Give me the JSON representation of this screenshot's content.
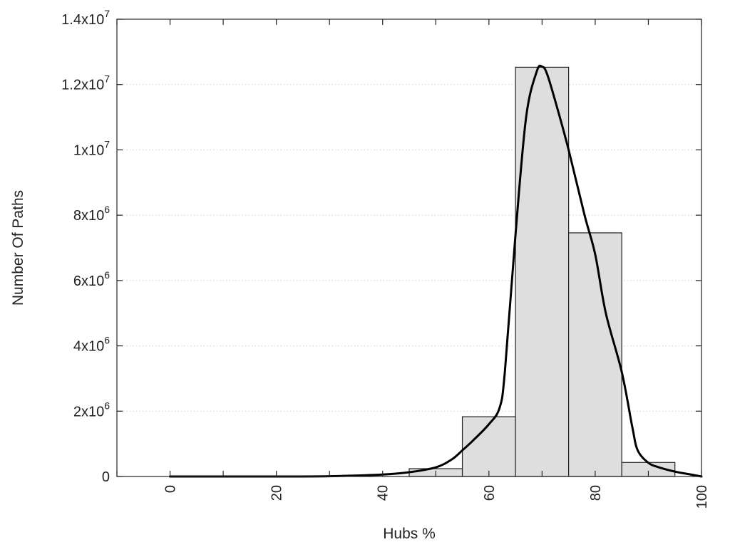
{
  "chart_data": {
    "type": "bar",
    "xlabel": "Hubs %",
    "ylabel": "Number Of Paths",
    "xlim": [
      -10,
      100
    ],
    "ylim": [
      0,
      14000000
    ],
    "grid": true,
    "legend": "none",
    "x_ticks": [
      {
        "value": 0,
        "label": "0"
      },
      {
        "value": 20,
        "label": "20"
      },
      {
        "value": 40,
        "label": "40"
      },
      {
        "value": 60,
        "label": "60"
      },
      {
        "value": 80,
        "label": "80"
      },
      {
        "value": 100,
        "label": "100"
      }
    ],
    "y_ticks": [
      {
        "value": 0,
        "base": "0",
        "exp": ""
      },
      {
        "value": 2000000,
        "base": "2x10",
        "exp": "6"
      },
      {
        "value": 4000000,
        "base": "4x10",
        "exp": "6"
      },
      {
        "value": 6000000,
        "base": "6x10",
        "exp": "6"
      },
      {
        "value": 8000000,
        "base": "8x10",
        "exp": "6"
      },
      {
        "value": 10000000,
        "base": "1x10",
        "exp": "7"
      },
      {
        "value": 12000000,
        "base": "1.2x10",
        "exp": "7"
      },
      {
        "value": 14000000,
        "base": "1.4x10",
        "exp": "7"
      }
    ],
    "bars": [
      {
        "x0": 45,
        "x1": 55,
        "value": 240000
      },
      {
        "x0": 55,
        "x1": 65,
        "value": 1830000
      },
      {
        "x0": 65,
        "x1": 75,
        "value": 12530000
      },
      {
        "x0": 75,
        "x1": 85,
        "value": 7460000
      },
      {
        "x0": 85,
        "x1": 95,
        "value": 430000
      }
    ],
    "curve": [
      [
        0,
        0
      ],
      [
        10,
        0
      ],
      [
        20,
        0
      ],
      [
        30,
        8000
      ],
      [
        40,
        60000
      ],
      [
        45,
        130000
      ],
      [
        50,
        280000
      ],
      [
        53,
        520000
      ],
      [
        55,
        800000
      ],
      [
        57,
        1100000
      ],
      [
        60,
        1600000
      ],
      [
        62,
        2100000
      ],
      [
        63,
        3200000
      ],
      [
        65,
        7400000
      ],
      [
        67,
        11000000
      ],
      [
        69,
        12400000
      ],
      [
        70,
        12550000
      ],
      [
        71,
        12300000
      ],
      [
        73,
        11200000
      ],
      [
        75,
        10000000
      ],
      [
        78,
        8000000
      ],
      [
        80,
        6800000
      ],
      [
        82,
        5000000
      ],
      [
        85,
        3200000
      ],
      [
        87,
        1500000
      ],
      [
        88,
        800000
      ],
      [
        90,
        420000
      ],
      [
        92,
        280000
      ],
      [
        95,
        150000
      ],
      [
        98,
        60000
      ],
      [
        100,
        0
      ]
    ]
  }
}
